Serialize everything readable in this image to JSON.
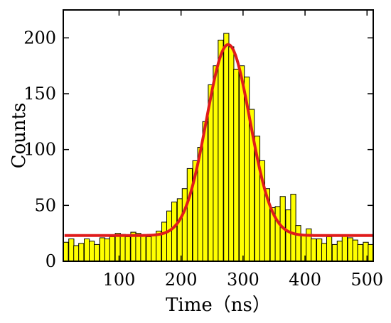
{
  "chart_data": {
    "type": "bar",
    "xlabel": "Time（ns）",
    "ylabel": "Counts",
    "xlim": [
      10,
      510
    ],
    "ylim": [
      0,
      225
    ],
    "x_ticks": [
      100,
      200,
      300,
      400,
      500
    ],
    "y_ticks": [
      0,
      50,
      100,
      150,
      200
    ],
    "bin_width": 8.3,
    "bars": {
      "x": [
        14,
        23,
        31,
        39,
        48,
        56,
        64,
        73,
        81,
        89,
        98,
        106,
        114,
        123,
        131,
        139,
        148,
        156,
        164,
        173,
        181,
        189,
        198,
        206,
        214,
        223,
        231,
        239,
        248,
        256,
        264,
        273,
        281,
        289,
        298,
        306,
        314,
        323,
        331,
        339,
        348,
        356,
        364,
        373,
        381,
        389,
        398,
        406,
        414,
        423,
        431,
        439,
        448,
        456,
        464,
        473,
        481,
        489,
        498,
        506
      ],
      "values": [
        17,
        20,
        14,
        16,
        20,
        18,
        15,
        21,
        20,
        22,
        25,
        24,
        22,
        26,
        25,
        23,
        22,
        24,
        27,
        35,
        45,
        53,
        56,
        65,
        83,
        90,
        102,
        125,
        158,
        175,
        198,
        204,
        192,
        172,
        175,
        165,
        136,
        112,
        90,
        65,
        48,
        49,
        58,
        46,
        60,
        32,
        23,
        29,
        20,
        20,
        16,
        22,
        15,
        18,
        23,
        21,
        19,
        15,
        17,
        15
      ]
    },
    "series": [
      {
        "type": "gaussian_fit",
        "baseline": 23,
        "amplitude": 171,
        "center": 276,
        "sigma": 35
      }
    ],
    "colors": {
      "bar_fill": "#ffff00",
      "bar_edge": "#000000",
      "fit_line": "#e01b1b"
    },
    "grid": false,
    "legend": "none"
  }
}
